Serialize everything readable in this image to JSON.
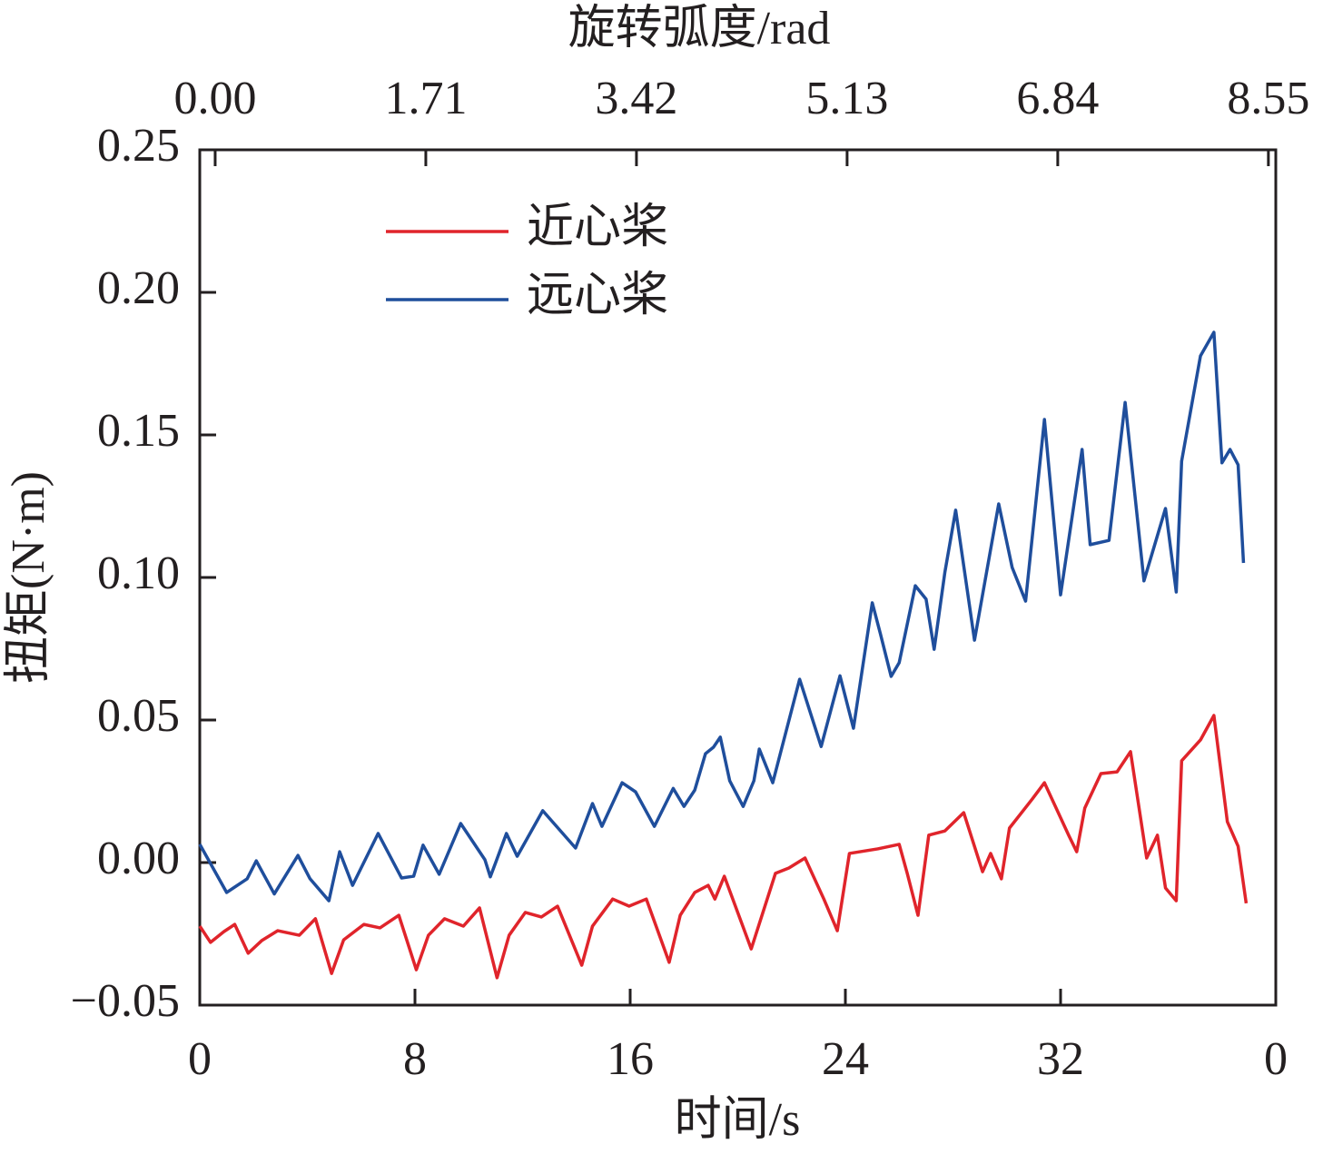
{
  "chart_data": {
    "type": "line",
    "xlabel": "时间/s",
    "ylabel": "扭矩(N·m)",
    "x2label": "旋转弧度/rad",
    "xlim": [
      0,
      40
    ],
    "xticks": [
      0,
      8,
      16,
      24,
      32,
      {
        "value": 40,
        "label": "0"
      }
    ],
    "x2lim": [
      -0.125,
      8.61
    ],
    "x2ticks": [
      {
        "value": 0,
        "label": "0.00"
      },
      1.71,
      3.42,
      5.13,
      6.84,
      8.55
    ],
    "ylim": [
      -0.05,
      0.25
    ],
    "yticks": [
      {
        "value": -0.05,
        "label": "−0.05"
      },
      {
        "value": 0,
        "label": "0.00"
      },
      0.05,
      {
        "value": 0.1,
        "label": "0.10"
      },
      0.15,
      {
        "value": 0.2,
        "label": "0.20"
      },
      0.25
    ],
    "legend_loc": "upper left",
    "series": [
      {
        "name": "近心桨",
        "color": "#e0242b",
        "x": [
          0,
          0.4,
          0.9,
          1.3,
          1.8,
          2.3,
          2.9,
          3.7,
          4.3,
          4.9,
          5.35,
          6.1,
          6.7,
          7.4,
          8.05,
          8.5,
          9.1,
          9.8,
          10.4,
          11.05,
          11.5,
          12.1,
          12.7,
          13.3,
          14.2,
          14.6,
          15.35,
          15.96,
          16.6,
          17.45,
          17.86,
          18.4,
          18.9,
          19.15,
          19.5,
          20.5,
          21.4,
          21.9,
          22.5,
          23.2,
          23.7,
          24.15,
          25.2,
          26.0,
          26.3,
          26.7,
          27.1,
          27.7,
          28.4,
          29.1,
          29.4,
          29.8,
          30.1,
          30.95,
          31.4,
          32.3,
          32.6,
          32.9,
          33.5,
          34.1,
          34.6,
          35.2,
          35.6,
          35.9,
          36.3,
          36.5,
          37.2,
          37.7,
          38.2,
          38.6,
          38.9
        ],
        "values": [
          -0.0223,
          -0.028,
          -0.0242,
          -0.0217,
          -0.0318,
          -0.0274,
          -0.0239,
          -0.0255,
          -0.0197,
          -0.0389,
          -0.0271,
          -0.0217,
          -0.0229,
          -0.0185,
          -0.0376,
          -0.0255,
          -0.0197,
          -0.0223,
          -0.0159,
          -0.0404,
          -0.0255,
          -0.0175,
          -0.0191,
          -0.0153,
          -0.036,
          -0.0223,
          -0.0128,
          -0.0153,
          -0.0128,
          -0.035,
          -0.0185,
          -0.0105,
          -0.008,
          -0.0128,
          -0.0048,
          -0.0303,
          -0.0038,
          -0.0019,
          0.0016,
          -0.0128,
          -0.0239,
          0.0032,
          0.0048,
          0.0064,
          -0.0038,
          -0.0185,
          0.0096,
          0.0111,
          0.0175,
          -0.0032,
          0.0032,
          -0.0057,
          0.0121,
          0.0223,
          0.028,
          0.0096,
          0.0038,
          0.0191,
          0.0312,
          0.0318,
          0.0389,
          0.0016,
          0.0096,
          -0.0089,
          -0.0134,
          0.0357,
          0.043,
          0.0516,
          0.0143,
          0.0057,
          -0.0143
        ]
      },
      {
        "name": "远心桨",
        "color": "#1f4e9c",
        "x": [
          0,
          1.0,
          1.76,
          2.1,
          2.77,
          3.65,
          4.1,
          4.8,
          5.2,
          5.68,
          6.63,
          7.5,
          7.95,
          8.3,
          8.9,
          9.7,
          10.6,
          10.8,
          11.0,
          11.4,
          11.8,
          12.75,
          13.97,
          14.6,
          14.95,
          15.7,
          16.2,
          16.9,
          17.6,
          18.0,
          18.4,
          18.8,
          19.1,
          19.35,
          19.7,
          20.2,
          20.6,
          20.8,
          21.3,
          22.3,
          23.1,
          23.8,
          24.3,
          25.0,
          25.3,
          25.7,
          26.0,
          26.6,
          27.0,
          27.3,
          27.7,
          28.1,
          28.8,
          29.7,
          30.2,
          30.7,
          31.4,
          32.0,
          32.8,
          33.1,
          33.8,
          34.4,
          35.1,
          35.9,
          36.3,
          36.5,
          37.2,
          37.7,
          38.0,
          38.3,
          38.6,
          38.8
        ],
        "values": [
          0.0064,
          -0.0105,
          -0.0057,
          0.0006,
          -0.011,
          0.0025,
          -0.0057,
          -0.0134,
          0.0038,
          -0.008,
          0.0102,
          -0.0054,
          -0.0048,
          0.0061,
          -0.0041,
          0.0137,
          0.001,
          -0.005,
          0.0,
          0.0102,
          0.0022,
          0.0182,
          0.0051,
          0.0207,
          0.0127,
          0.028,
          0.0248,
          0.0127,
          0.026,
          0.0197,
          0.0254,
          0.0382,
          0.0405,
          0.044,
          0.0287,
          0.0197,
          0.0287,
          0.0398,
          0.028,
          0.0643,
          0.0407,
          0.0655,
          0.0471,
          0.0911,
          0.0803,
          0.0653,
          0.0701,
          0.0971,
          0.0924,
          0.0748,
          0.1019,
          0.1236,
          0.078,
          0.1258,
          0.1035,
          0.0917,
          0.1554,
          0.0939,
          0.1449,
          0.1115,
          0.113,
          0.1614,
          0.0988,
          0.1242,
          0.0949,
          0.1408,
          0.1777,
          0.186,
          0.1402,
          0.1449,
          0.1395,
          0.1051
        ]
      }
    ]
  }
}
